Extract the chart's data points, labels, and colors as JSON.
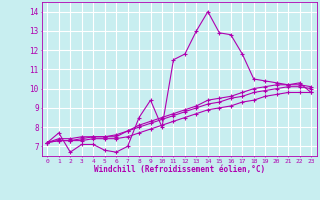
{
  "xlabel": "Windchill (Refroidissement éolien,°C)",
  "bg_color": "#c8eef0",
  "grid_color": "#ffffff",
  "line_color": "#b000b0",
  "x_ticks": [
    0,
    1,
    2,
    3,
    4,
    5,
    6,
    7,
    8,
    9,
    10,
    11,
    12,
    13,
    14,
    15,
    16,
    17,
    18,
    19,
    20,
    21,
    22,
    23
  ],
  "y_ticks": [
    7,
    8,
    9,
    10,
    11,
    12,
    13,
    14
  ],
  "xlim": [
    -0.5,
    23.5
  ],
  "ylim": [
    6.5,
    14.5
  ],
  "curve1_x": [
    0,
    1,
    2,
    3,
    4,
    5,
    6,
    7,
    8,
    9,
    10,
    11,
    12,
    13,
    14,
    15,
    16,
    17,
    18,
    19,
    20,
    21,
    22,
    23
  ],
  "curve1_y": [
    7.2,
    7.7,
    6.7,
    7.1,
    7.1,
    6.8,
    6.7,
    7.0,
    8.5,
    9.4,
    8.0,
    11.5,
    11.8,
    13.0,
    14.0,
    12.9,
    12.8,
    11.8,
    10.5,
    10.4,
    10.3,
    10.2,
    10.3,
    9.8
  ],
  "curve2_x": [
    0,
    1,
    2,
    3,
    4,
    5,
    6,
    7,
    8,
    9,
    10,
    11,
    12,
    13,
    14,
    15,
    16,
    17,
    18,
    19,
    20,
    21,
    22,
    23
  ],
  "curve2_y": [
    7.2,
    7.3,
    7.3,
    7.3,
    7.4,
    7.4,
    7.4,
    7.5,
    7.7,
    7.9,
    8.1,
    8.3,
    8.5,
    8.7,
    8.9,
    9.0,
    9.1,
    9.3,
    9.4,
    9.6,
    9.7,
    9.8,
    9.8,
    9.8
  ],
  "curve3_x": [
    0,
    1,
    2,
    3,
    4,
    5,
    6,
    7,
    8,
    9,
    10,
    11,
    12,
    13,
    14,
    15,
    16,
    17,
    18,
    19,
    20,
    21,
    22,
    23
  ],
  "curve3_y": [
    7.2,
    7.3,
    7.3,
    7.4,
    7.5,
    7.5,
    7.5,
    7.8,
    8.0,
    8.2,
    8.4,
    8.6,
    8.8,
    9.0,
    9.2,
    9.3,
    9.5,
    9.6,
    9.8,
    9.9,
    10.0,
    10.1,
    10.1,
    10.0
  ],
  "curve4_x": [
    0,
    1,
    2,
    3,
    4,
    5,
    6,
    7,
    8,
    9,
    10,
    11,
    12,
    13,
    14,
    15,
    16,
    17,
    18,
    19,
    20,
    21,
    22,
    23
  ],
  "curve4_y": [
    7.2,
    7.4,
    7.4,
    7.5,
    7.5,
    7.5,
    7.6,
    7.8,
    8.1,
    8.3,
    8.5,
    8.7,
    8.9,
    9.1,
    9.4,
    9.5,
    9.6,
    9.8,
    10.0,
    10.1,
    10.2,
    10.2,
    10.2,
    10.1
  ]
}
